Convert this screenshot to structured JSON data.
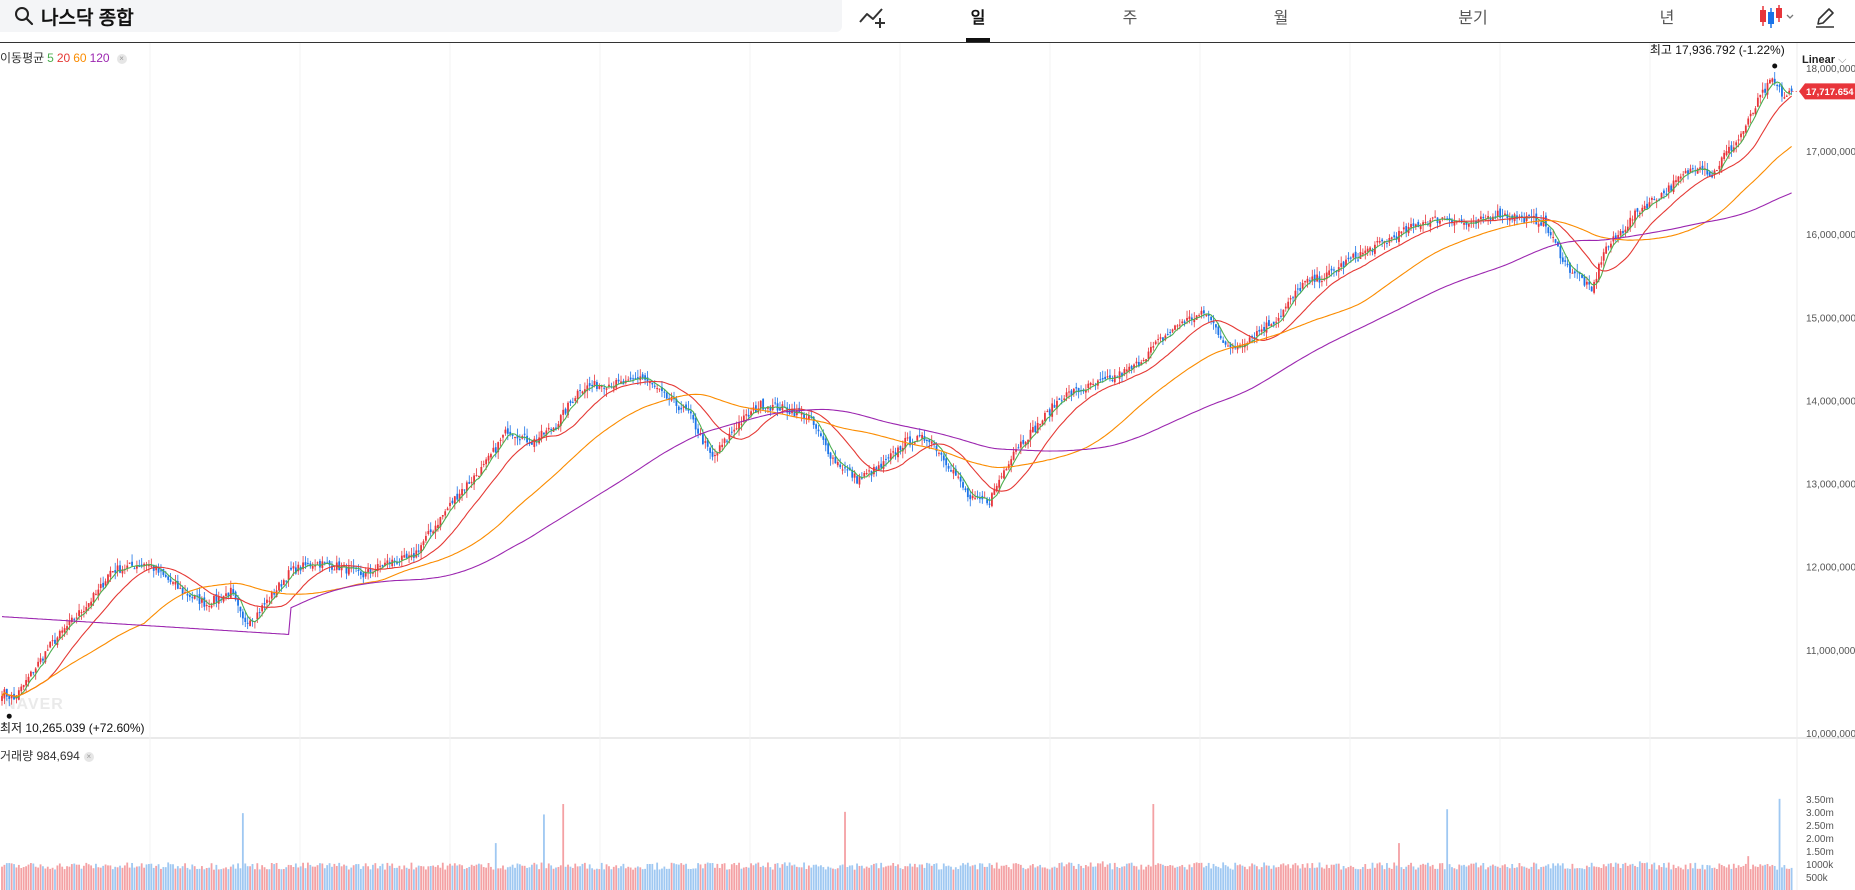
{
  "header": {
    "search_text": "나스닥 종합",
    "periods": [
      {
        "label": "일",
        "active": true
      },
      {
        "label": "주",
        "active": false
      },
      {
        "label": "월",
        "active": false
      },
      {
        "label": "분기",
        "active": false
      },
      {
        "label": "년",
        "active": false
      }
    ],
    "icons": {
      "search": "search-icon",
      "indicator": "add-indicator-icon",
      "chart_type": "candlestick-icon",
      "draw": "pencil-icon"
    }
  },
  "legend": {
    "ma_label": "이동평균",
    "ma_periods": [
      {
        "label": "5",
        "color": "#4caf50"
      },
      {
        "label": "20",
        "color": "#e53935"
      },
      {
        "label": "60",
        "color": "#fb8c00"
      },
      {
        "label": "120",
        "color": "#9c27b0"
      }
    ],
    "volume_label": "거래량",
    "volume_value": "984,694"
  },
  "scale_label": "Linear",
  "watermark": "NAVER",
  "colors": {
    "up": "#e8353b",
    "down": "#1a73e8",
    "vol_up": "#f4a1a4",
    "vol_down": "#9fc8f2",
    "current_tag": "#e8353b"
  },
  "chart_data": {
    "type": "candlestick",
    "price_axis": {
      "ylim": [
        10000000,
        18300000
      ],
      "ticks": [
        "10,000,000",
        "11,000,000",
        "12,000,000",
        "13,000,000",
        "14,000,000",
        "15,000,000",
        "16,000,000",
        "17,000,000",
        "18,000,000"
      ]
    },
    "volume_axis": {
      "ylim": [
        0,
        3800000
      ],
      "ticks": [
        "500k",
        "1000k",
        "1.50m",
        "2.00m",
        "2.50m",
        "3.00m",
        "3.50m"
      ]
    },
    "current_price": "17,717.654",
    "high_label": "최고 17,936.792 (-1.22%)",
    "low_label": "최저 10,265.039 (+72.60%)",
    "close_path": [
      [
        0,
        10500000
      ],
      [
        5,
        10400000
      ],
      [
        20,
        11050000
      ],
      [
        40,
        11700000
      ],
      [
        45,
        11950000
      ],
      [
        60,
        12050000
      ],
      [
        75,
        11700000
      ],
      [
        85,
        11550000
      ],
      [
        95,
        11700000
      ],
      [
        100,
        11350000
      ],
      [
        105,
        11400000
      ],
      [
        120,
        11950000
      ],
      [
        130,
        12050000
      ],
      [
        140,
        12000000
      ],
      [
        150,
        11900000
      ],
      [
        160,
        12050000
      ],
      [
        170,
        12100000
      ],
      [
        180,
        12500000
      ],
      [
        190,
        12900000
      ],
      [
        200,
        13200000
      ],
      [
        210,
        13650000
      ],
      [
        220,
        13500000
      ],
      [
        230,
        13700000
      ],
      [
        240,
        14150000
      ],
      [
        250,
        14200000
      ],
      [
        260,
        14200000
      ],
      [
        265,
        14300000
      ],
      [
        275,
        14050000
      ],
      [
        285,
        13850000
      ],
      [
        295,
        13300000
      ],
      [
        305,
        13700000
      ],
      [
        315,
        13950000
      ],
      [
        325,
        13900000
      ],
      [
        335,
        13800000
      ],
      [
        345,
        13300000
      ],
      [
        355,
        13050000
      ],
      [
        365,
        13200000
      ],
      [
        375,
        13500000
      ],
      [
        385,
        13550000
      ],
      [
        395,
        13150000
      ],
      [
        402,
        12800000
      ],
      [
        410,
        12800000
      ],
      [
        420,
        13400000
      ],
      [
        430,
        13700000
      ],
      [
        440,
        14050000
      ],
      [
        450,
        14150000
      ],
      [
        460,
        14250000
      ],
      [
        470,
        14400000
      ],
      [
        480,
        14700000
      ],
      [
        490,
        14950000
      ],
      [
        500,
        15050000
      ],
      [
        510,
        14600000
      ],
      [
        520,
        14800000
      ],
      [
        530,
        15000000
      ],
      [
        540,
        15400000
      ],
      [
        550,
        15500000
      ],
      [
        560,
        15700000
      ],
      [
        570,
        15850000
      ],
      [
        580,
        16000000
      ],
      [
        590,
        16150000
      ],
      [
        600,
        16200000
      ],
      [
        610,
        16100000
      ],
      [
        620,
        16250000
      ],
      [
        630,
        16200000
      ],
      [
        640,
        16150000
      ],
      [
        650,
        15600000
      ],
      [
        655,
        15500000
      ],
      [
        660,
        15300000
      ],
      [
        665,
        15800000
      ],
      [
        670,
        15950000
      ],
      [
        680,
        16300000
      ],
      [
        690,
        16500000
      ],
      [
        700,
        16750000
      ],
      [
        705,
        16850000
      ],
      [
        710,
        16700000
      ],
      [
        715,
        16950000
      ],
      [
        720,
        17100000
      ],
      [
        725,
        17350000
      ],
      [
        730,
        17650000
      ],
      [
        735,
        17850000
      ],
      [
        740,
        17650000
      ],
      [
        743,
        17717654
      ]
    ],
    "volume_spikes": [
      [
        100,
        2950000
      ],
      [
        205,
        1800000
      ],
      [
        225,
        2900000
      ],
      [
        233,
        3300000
      ],
      [
        270,
        1000000
      ],
      [
        350,
        3000000
      ],
      [
        457,
        1100000
      ],
      [
        478,
        3300000
      ],
      [
        580,
        1800000
      ],
      [
        600,
        3100000
      ],
      [
        738,
        3500000
      ],
      [
        680,
        1100000
      ],
      [
        725,
        1300000
      ]
    ]
  }
}
